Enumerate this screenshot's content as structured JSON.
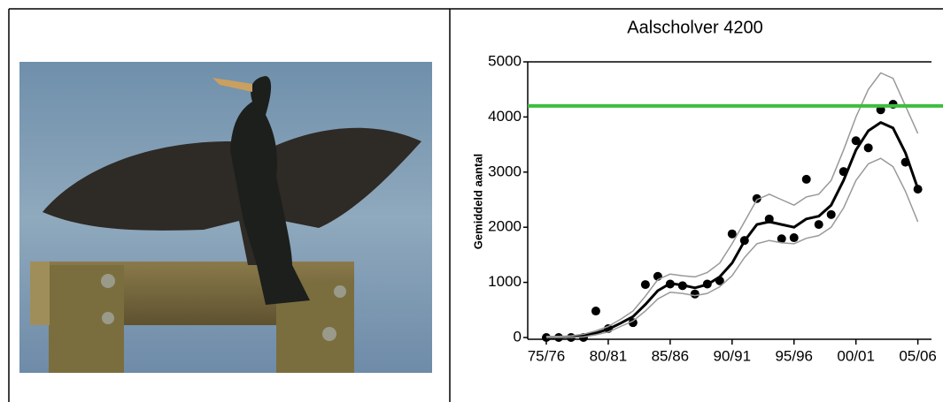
{
  "chart_data": {
    "type": "line",
    "title": "Aalscholver 4200",
    "y_label": "Gemiddeld aantal",
    "x": [
      1975,
      1976,
      1977,
      1978,
      1979,
      1980,
      1981,
      1982,
      1983,
      1984,
      1985,
      1986,
      1987,
      1988,
      1989,
      1990,
      1991,
      1992,
      1993,
      1994,
      1995,
      1996,
      1997,
      1998,
      1999,
      2000,
      2001,
      2002,
      2003,
      2004,
      2005
    ],
    "series": [
      {
        "color": "#000000",
        "style": "points",
        "values": [
          0,
          0,
          0,
          0,
          480,
          160,
          null,
          270,
          960,
          1110,
          970,
          940,
          790,
          970,
          1030,
          1880,
          1760,
          2520,
          2150,
          1790,
          1810,
          2870,
          2050,
          2230,
          3010,
          3570,
          3440,
          4130,
          4230,
          3180,
          2690
        ]
      },
      {
        "color": "#000000",
        "style": "thick",
        "values": [
          0,
          0,
          10,
          30,
          80,
          150,
          260,
          380,
          600,
          850,
          980,
          950,
          900,
          960,
          1100,
          1350,
          1750,
          2050,
          2100,
          2050,
          2000,
          2150,
          2200,
          2400,
          2850,
          3400,
          3750,
          3900,
          3800,
          3350,
          2700
        ]
      },
      {
        "color": "#999999",
        "style": "thin",
        "values": [
          20,
          20,
          30,
          60,
          120,
          200,
          330,
          480,
          750,
          1050,
          1150,
          1120,
          1100,
          1180,
          1350,
          1700,
          2100,
          2500,
          2600,
          2500,
          2400,
          2550,
          2600,
          2850,
          3400,
          4000,
          4500,
          4800,
          4700,
          4200,
          3700
        ]
      },
      {
        "color": "#999999",
        "style": "thin",
        "values": [
          0,
          0,
          0,
          10,
          50,
          100,
          200,
          300,
          480,
          700,
          820,
          800,
          760,
          800,
          920,
          1120,
          1450,
          1700,
          1760,
          1720,
          1700,
          1800,
          1850,
          2000,
          2350,
          2850,
          3150,
          3250,
          3100,
          2650,
          2100
        ]
      }
    ],
    "reference_line": {
      "value": 4200,
      "color": "#3cbf3c"
    },
    "xlim": [
      1973.5,
      2006.1
    ],
    "xticks": [
      {
        "value": 1975,
        "label": "75/76"
      },
      {
        "value": 1980,
        "label": "80/81"
      },
      {
        "value": 1985,
        "label": "85/86"
      },
      {
        "value": 1990,
        "label": "90/91"
      },
      {
        "value": 1995,
        "label": "95/96"
      },
      {
        "value": 2000,
        "label": "00/01"
      },
      {
        "value": 2005,
        "label": "05/06"
      }
    ],
    "ylim": [
      0,
      5000
    ],
    "yticks": [
      0,
      1000,
      2000,
      3000,
      4000,
      5000
    ],
    "grid": false
  }
}
